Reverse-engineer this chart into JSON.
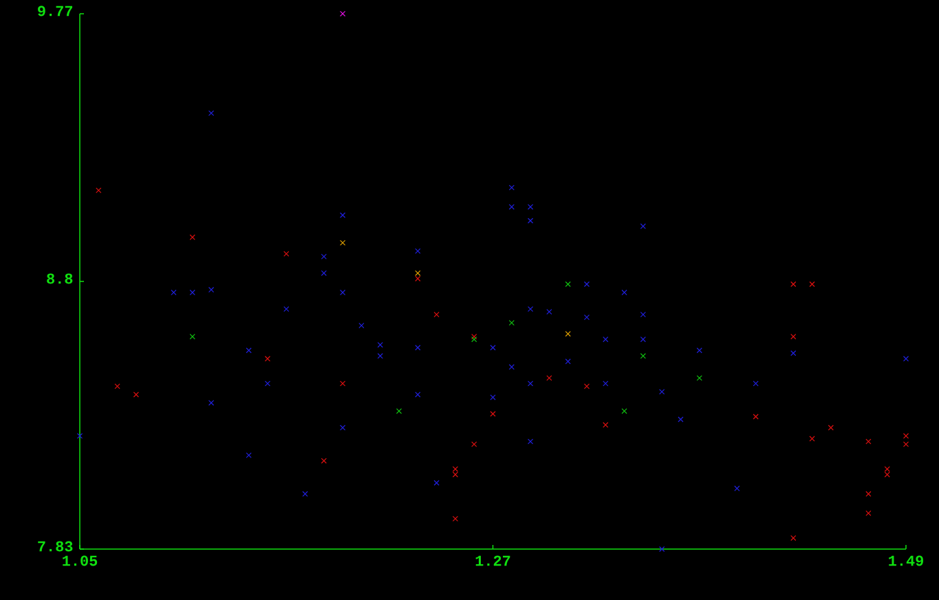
{
  "chart_data": {
    "type": "scatter",
    "marker": "cross",
    "xlim": [
      1.05,
      1.49
    ],
    "ylim": [
      7.83,
      9.77
    ],
    "xticks": [
      1.05,
      1.27,
      1.49
    ],
    "yticks": [
      7.83,
      8.8,
      9.77
    ],
    "series": [
      {
        "color": "#2020e0",
        "x": [
          1.05,
          1.12,
          1.1,
          1.11,
          1.12,
          1.12,
          1.14,
          1.14,
          1.15,
          1.16,
          1.17,
          1.18,
          1.18,
          1.19,
          1.19,
          1.19,
          1.2,
          1.21,
          1.21,
          1.23,
          1.23,
          1.23,
          1.24,
          1.27,
          1.27,
          1.28,
          1.28,
          1.28,
          1.29,
          1.29,
          1.29,
          1.29,
          1.29,
          1.3,
          1.31,
          1.32,
          1.32,
          1.33,
          1.33,
          1.34,
          1.35,
          1.35,
          1.35,
          1.36,
          1.36,
          1.37,
          1.38,
          1.4,
          1.41,
          1.43,
          1.49
        ],
        "values": [
          8.24,
          9.41,
          8.76,
          8.76,
          8.77,
          8.36,
          8.55,
          8.17,
          8.43,
          8.7,
          8.03,
          8.89,
          8.83,
          9.04,
          8.76,
          8.27,
          8.64,
          8.57,
          8.53,
          8.91,
          8.56,
          8.39,
          8.07,
          8.56,
          8.38,
          9.14,
          9.07,
          8.49,
          9.07,
          9.02,
          8.7,
          8.43,
          8.22,
          8.69,
          8.51,
          8.79,
          8.67,
          8.59,
          8.43,
          8.76,
          9.0,
          8.68,
          8.59,
          8.4,
          7.83,
          8.3,
          8.55,
          8.05,
          8.43,
          8.54,
          8.52
        ]
      },
      {
        "color": "#e01010",
        "x": [
          1.06,
          1.07,
          1.08,
          1.11,
          1.15,
          1.16,
          1.18,
          1.19,
          1.23,
          1.24,
          1.25,
          1.25,
          1.25,
          1.26,
          1.26,
          1.27,
          1.3,
          1.32,
          1.33,
          1.41,
          1.43,
          1.43,
          1.43,
          1.44,
          1.44,
          1.45,
          1.47,
          1.47,
          1.47,
          1.48,
          1.48,
          1.49,
          1.49
        ],
        "values": [
          9.13,
          8.42,
          8.39,
          8.96,
          8.52,
          8.9,
          8.15,
          8.43,
          8.81,
          8.68,
          8.12,
          8.1,
          7.94,
          8.6,
          8.21,
          8.32,
          8.45,
          8.42,
          8.28,
          8.31,
          8.79,
          8.6,
          7.87,
          8.79,
          8.23,
          8.27,
          8.22,
          8.03,
          7.96,
          8.12,
          8.1,
          8.24,
          8.21
        ]
      },
      {
        "color": "#10c010",
        "x": [
          1.11,
          1.22,
          1.26,
          1.28,
          1.31,
          1.34,
          1.35,
          1.38
        ],
        "values": [
          8.6,
          8.33,
          8.59,
          8.65,
          8.79,
          8.33,
          8.53,
          8.45
        ]
      },
      {
        "color": "#e0a000",
        "x": [
          1.19,
          1.23,
          1.31
        ],
        "values": [
          8.94,
          8.83,
          8.61
        ]
      },
      {
        "color": "#e010e0",
        "x": [
          1.19
        ],
        "values": [
          9.77
        ]
      }
    ]
  }
}
